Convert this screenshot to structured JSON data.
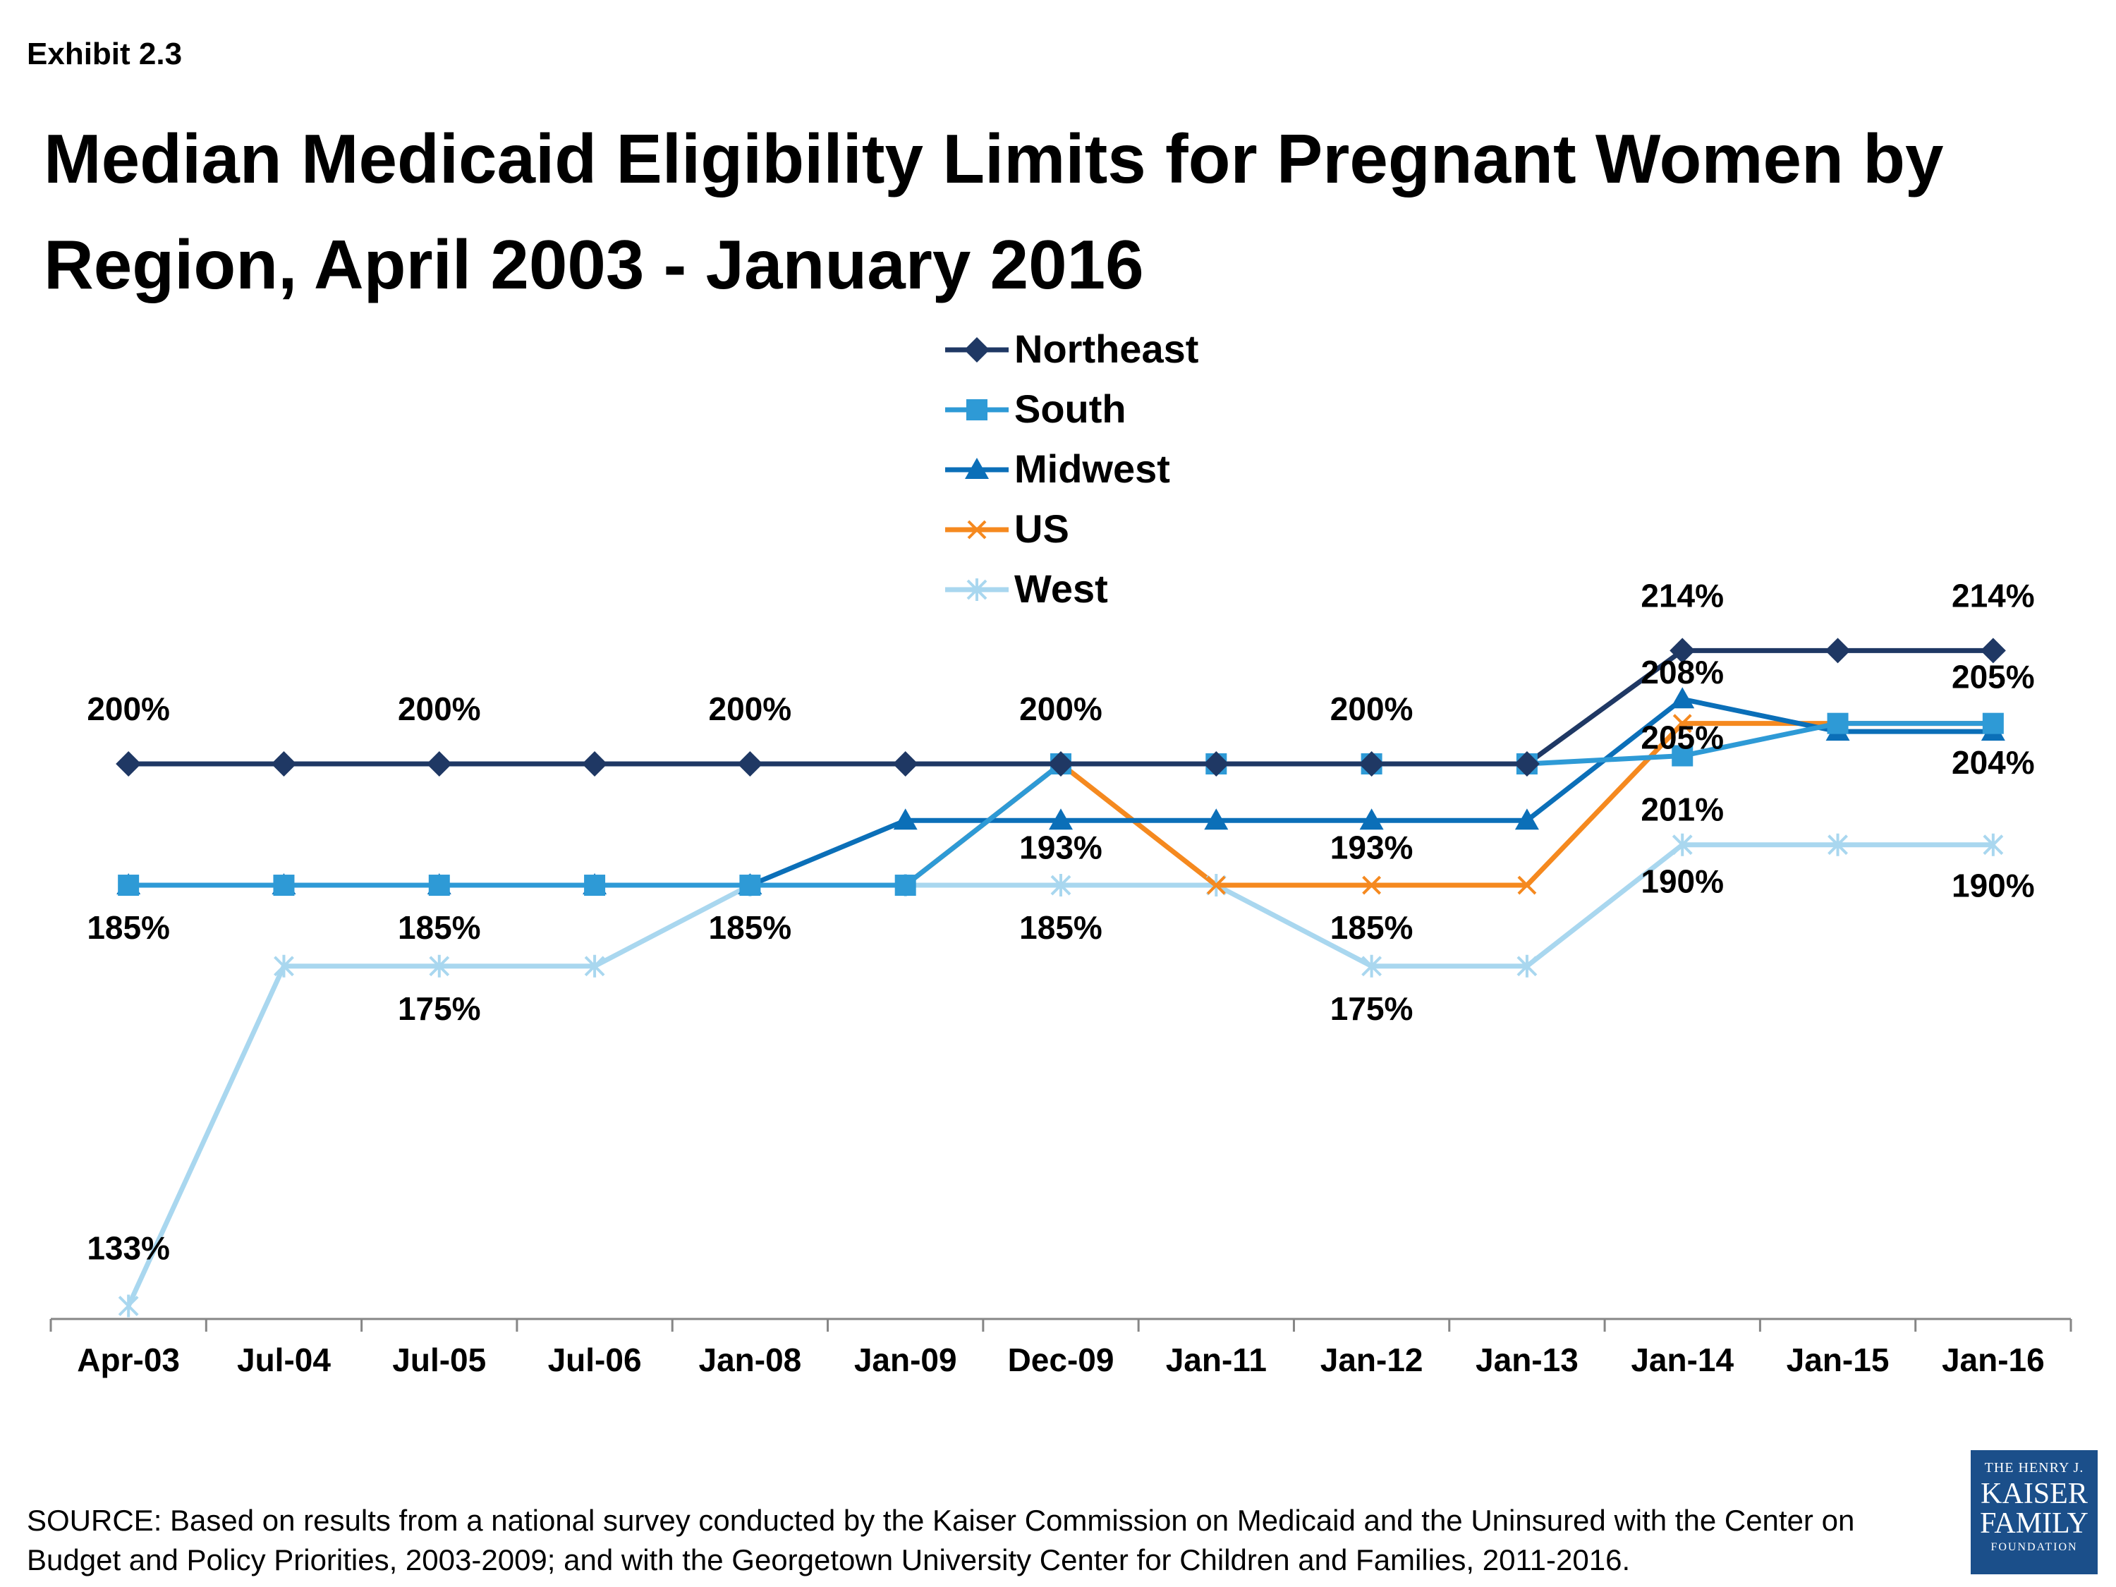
{
  "header": {
    "exhibit": "Exhibit 2.3",
    "title": "Median Medicaid Eligibility Limits for Pregnant Women by Region,  April 2003 - January 2016"
  },
  "footer": {
    "source": "SOURCE:  Based on results from a national survey conducted by the Kaiser Commission on Medicaid and the Uninsured with the Center on Budget and Policy Priorities, 2003-2009; and with the Georgetown University Center for Children and Families, 2011-2016.",
    "logo": {
      "line1": "THE HENRY J.",
      "line2": "KAISER",
      "line3": "FAMILY",
      "line4": "FOUNDATION"
    }
  },
  "chart_data": {
    "type": "line",
    "title": "Median Medicaid Eligibility Limits for Pregnant Women by Region,  April 2003 - January 2016",
    "xlabel": "",
    "ylabel": "",
    "ylim": [
      130,
      220
    ],
    "grid": false,
    "legend_position": "top-center",
    "categories": [
      "Apr-03",
      "Jul-04",
      "Jul-05",
      "Jul-06",
      "Jan-08",
      "Jan-09",
      "Dec-09",
      "Jan-11",
      "Jan-12",
      "Jan-13",
      "Jan-14",
      "Jan-15",
      "Jan-16"
    ],
    "series": [
      {
        "name": "Northeast",
        "color": "#1f3864",
        "marker": "diamond",
        "values": [
          200,
          200,
          200,
          200,
          200,
          200,
          200,
          200,
          200,
          200,
          214,
          214,
          214
        ]
      },
      {
        "name": "South",
        "color": "#2e9ad6",
        "marker": "square",
        "values": [
          185,
          185,
          185,
          185,
          185,
          185,
          200,
          200,
          200,
          200,
          201,
          205,
          205
        ]
      },
      {
        "name": "Midwest",
        "color": "#0b6fb8",
        "marker": "triangle",
        "values": [
          185,
          185,
          185,
          185,
          185,
          193,
          193,
          193,
          193,
          193,
          208,
          204,
          204
        ]
      },
      {
        "name": "US",
        "color": "#f5891f",
        "marker": "x",
        "values": [
          185,
          185,
          185,
          185,
          185,
          185,
          200,
          185,
          185,
          185,
          205,
          205,
          205
        ]
      },
      {
        "name": "West",
        "color": "#a9d7ef",
        "marker": "star",
        "values": [
          133,
          175,
          175,
          175,
          185,
          185,
          185,
          185,
          175,
          175,
          190,
          190,
          190
        ]
      }
    ],
    "data_labels": [
      {
        "text": "200%",
        "cat": 0,
        "value": 200,
        "dy": -62
      },
      {
        "text": "200%",
        "cat": 2,
        "value": 200,
        "dy": -62
      },
      {
        "text": "200%",
        "cat": 4,
        "value": 200,
        "dy": -62
      },
      {
        "text": "200%",
        "cat": 6,
        "value": 200,
        "dy": -62
      },
      {
        "text": "200%",
        "cat": 8,
        "value": 200,
        "dy": -62
      },
      {
        "text": "214%",
        "cat": 10,
        "value": 214,
        "dy": -62
      },
      {
        "text": "214%",
        "cat": 12,
        "value": 214,
        "dy": -62
      },
      {
        "text": "208%",
        "cat": 10,
        "value": 208,
        "dy": -22
      },
      {
        "text": "205%",
        "cat": 12,
        "value": 205,
        "dy": -50
      },
      {
        "text": "205%",
        "cat": 10,
        "value": 205,
        "dy": 36
      },
      {
        "text": "204%",
        "cat": 12,
        "value": 204,
        "dy": 60
      },
      {
        "text": "201%",
        "cat": 10,
        "value": 201,
        "dy": 92
      },
      {
        "text": "193%",
        "cat": 6,
        "value": 193,
        "dy": 54
      },
      {
        "text": "193%",
        "cat": 8,
        "value": 193,
        "dy": 54
      },
      {
        "text": "190%",
        "cat": 10,
        "value": 190,
        "dy": 68
      },
      {
        "text": "190%",
        "cat": 12,
        "value": 190,
        "dy": 74
      },
      {
        "text": "185%",
        "cat": 0,
        "value": 185,
        "dy": 76
      },
      {
        "text": "185%",
        "cat": 2,
        "value": 185,
        "dy": 76
      },
      {
        "text": "185%",
        "cat": 4,
        "value": 185,
        "dy": 76
      },
      {
        "text": "185%",
        "cat": 6,
        "value": 185,
        "dy": 76
      },
      {
        "text": "185%",
        "cat": 8,
        "value": 185,
        "dy": 76
      },
      {
        "text": "175%",
        "cat": 2,
        "value": 175,
        "dy": 76
      },
      {
        "text": "175%",
        "cat": 8,
        "value": 175,
        "dy": 76
      },
      {
        "text": "133%",
        "cat": 0,
        "value": 133,
        "dy": -66
      }
    ]
  }
}
